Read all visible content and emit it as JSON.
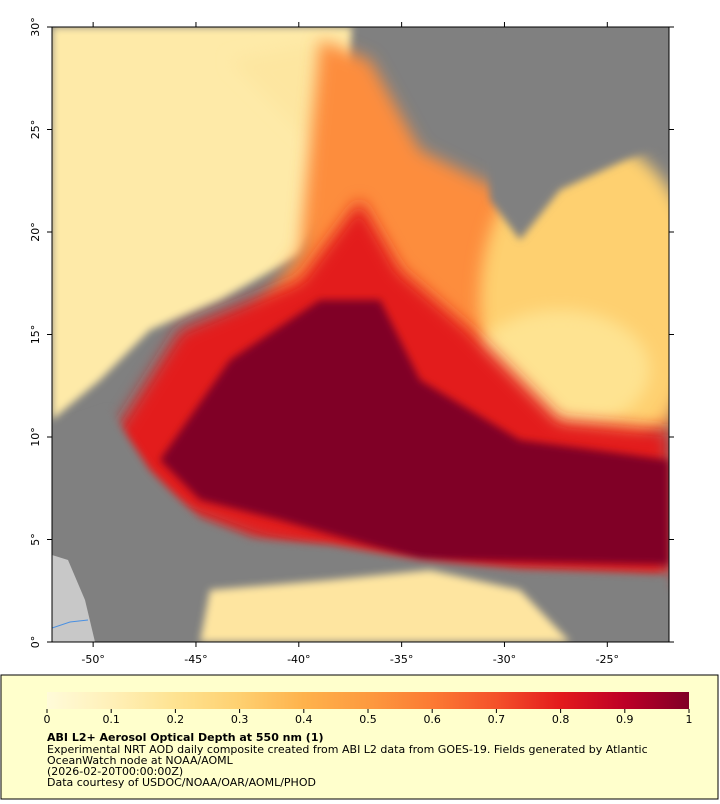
{
  "map": {
    "xlim": [
      -52,
      -22
    ],
    "ylim": [
      0,
      30
    ],
    "xticks": [
      {
        "value": -50,
        "label": "-50°"
      },
      {
        "value": -45,
        "label": "-45°"
      },
      {
        "value": -40,
        "label": "-40°"
      },
      {
        "value": -35,
        "label": "-35°"
      },
      {
        "value": -30,
        "label": "-30°"
      },
      {
        "value": -25,
        "label": "-25°"
      }
    ],
    "yticks": [
      {
        "value": 0,
        "label": "0°"
      },
      {
        "value": 5,
        "label": "5°"
      },
      {
        "value": 10,
        "label": "10°"
      },
      {
        "value": 15,
        "label": "15°"
      },
      {
        "value": 20,
        "label": "20°"
      },
      {
        "value": 25,
        "label": "25°"
      },
      {
        "value": 30,
        "label": "30°"
      }
    ]
  },
  "colorbar": {
    "range": [
      0,
      1
    ],
    "ticks": [
      0,
      0.1,
      0.2,
      0.3,
      0.4,
      0.5,
      0.6,
      0.7,
      0.8,
      0.9,
      1
    ],
    "colors": [
      "#fffbd9",
      "#fff0b8",
      "#fee391",
      "#fed070",
      "#feb24c",
      "#fd9a3f",
      "#fc7a33",
      "#f4512a",
      "#e31a1c",
      "#bd0026",
      "#800026"
    ]
  },
  "caption": {
    "title": "ABI L2+ Aerosol Optical Depth at 550 nm (1)",
    "lines": [
      "Experimental NRT AOD daily composite created from ABI L2 data from GOES-19. Fields generated by Atlantic",
      "OceanWatch node at NOAA/AOML",
      "(2026-02-20T00:00:00Z)",
      "Data courtesy of USDOC/NOAA/OAR/AOML/PHOD"
    ]
  }
}
